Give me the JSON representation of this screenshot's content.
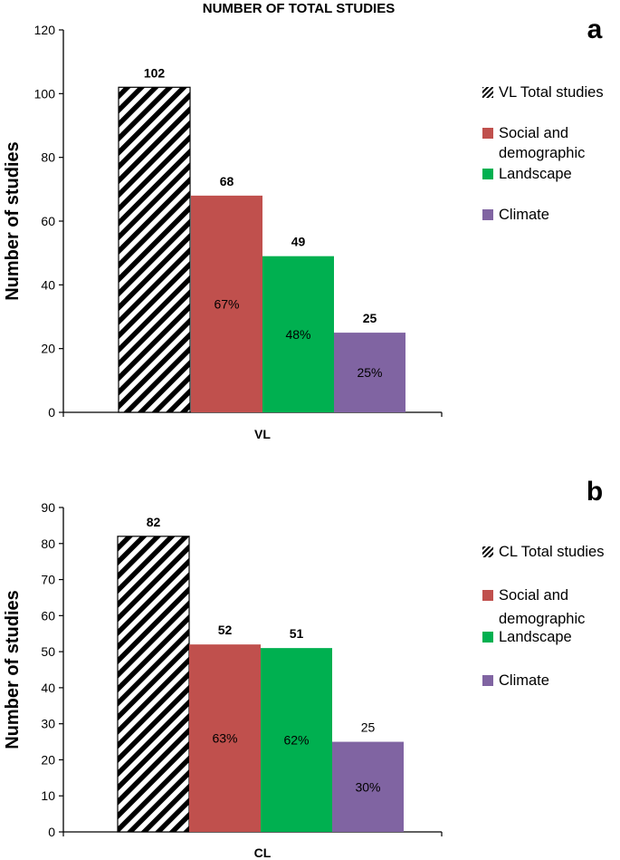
{
  "figure_title": "NUMBER OF TOTAL STUDIES",
  "colors": {
    "social": "#c0504d",
    "landscape": "#00b050",
    "climate": "#8064a2",
    "hatch_stroke": "#000000",
    "axis": "#000000"
  },
  "chart_data": [
    {
      "type": "bar",
      "panel_label": "a",
      "title": "NUMBER OF TOTAL STUDIES",
      "xlabel": "VL",
      "ylabel": "Number of studies",
      "ylim": [
        0,
        120
      ],
      "ytick_step": 20,
      "yticks": [
        "0",
        "20",
        "40",
        "60",
        "80",
        "100",
        "120"
      ],
      "categories": [
        "VL"
      ],
      "legend_position": "right",
      "series": [
        {
          "name": "VL Total studies",
          "key": "total",
          "values": [
            102
          ],
          "value_label": "102",
          "value_bold": true,
          "pct_label": ""
        },
        {
          "name": "Social and demographic",
          "key": "social",
          "values": [
            68
          ],
          "value_label": "68",
          "value_bold": true,
          "pct_label": "67%"
        },
        {
          "name": "Landscape",
          "key": "landscape",
          "values": [
            49
          ],
          "value_label": "49",
          "value_bold": true,
          "pct_label": "48%"
        },
        {
          "name": "Climate",
          "key": "climate",
          "values": [
            25
          ],
          "value_label": "25",
          "value_bold": true,
          "pct_label": "25%"
        }
      ]
    },
    {
      "type": "bar",
      "panel_label": "b",
      "title": "",
      "xlabel": "CL",
      "ylabel": "Number of studies",
      "ylim": [
        0,
        90
      ],
      "ytick_step": 10,
      "yticks": [
        "0",
        "10",
        "20",
        "30",
        "40",
        "50",
        "60",
        "70",
        "80",
        "90"
      ],
      "categories": [
        "CL"
      ],
      "legend_position": "right",
      "series": [
        {
          "name": "CL Total studies",
          "key": "total",
          "values": [
            82
          ],
          "value_label": "82",
          "value_bold": true,
          "pct_label": ""
        },
        {
          "name": "Social and demographic",
          "key": "social",
          "values": [
            52
          ],
          "value_label": "52",
          "value_bold": true,
          "pct_label": "63%"
        },
        {
          "name": "Landscape",
          "key": "landscape",
          "values": [
            51
          ],
          "value_label": "51",
          "value_bold": true,
          "pct_label": "62%"
        },
        {
          "name": "Climate",
          "key": "climate",
          "values": [
            25
          ],
          "value_label": "25",
          "value_bold": false,
          "pct_label": "30%"
        }
      ]
    }
  ]
}
